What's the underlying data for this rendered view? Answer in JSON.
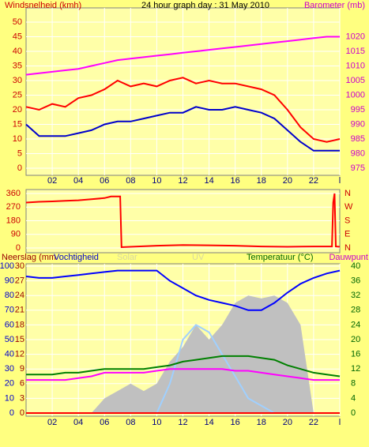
{
  "chart_data": [
    {
      "type": "line",
      "title": "24 hour graph day : 31 May 2010",
      "x": [
        0,
        1,
        2,
        3,
        4,
        5,
        6,
        7,
        8,
        9,
        10,
        11,
        12,
        13,
        14,
        15,
        16,
        17,
        18,
        19,
        20,
        21,
        22,
        23,
        24
      ],
      "series": [
        {
          "name": "Windsnelheid (kmh)",
          "color": "#ff0000",
          "axis": "y",
          "values": [
            21,
            20,
            22,
            21,
            24,
            25,
            27,
            30,
            28,
            29,
            28,
            30,
            31,
            29,
            30,
            29,
            29,
            28,
            27,
            25,
            20,
            14,
            10,
            9,
            10
          ]
        },
        {
          "color": "#0000cc",
          "axis": "y",
          "values": [
            15,
            11,
            11,
            11,
            12,
            13,
            15,
            16,
            16,
            17,
            18,
            19,
            19,
            21,
            20,
            20,
            21,
            20,
            19,
            17,
            13,
            9,
            6,
            6,
            6
          ]
        },
        {
          "name": "Barometer (mb)",
          "color": "#ff00ff",
          "axis": "y2",
          "values": [
            1007,
            1007.5,
            1008,
            1008.5,
            1009,
            1010,
            1011,
            1012,
            1012.5,
            1013,
            1013.5,
            1014,
            1014.5,
            1015,
            1015.5,
            1016,
            1016.5,
            1017,
            1017.5,
            1018,
            1018.5,
            1019,
            1019.5,
            1020,
            1020
          ]
        }
      ],
      "xlim": [
        0,
        24
      ],
      "xticks": [
        {
          "value": 2,
          "label": "02"
        },
        {
          "value": 4,
          "label": "04"
        },
        {
          "value": 6,
          "label": "06"
        },
        {
          "value": 8,
          "label": "08"
        },
        10,
        12,
        14,
        16,
        18,
        20,
        22,
        {
          "value": 24,
          "label": "l"
        }
      ],
      "ylim": [
        0,
        50
      ],
      "yticks": [
        0,
        5,
        10,
        15,
        20,
        25,
        30,
        35,
        40,
        45,
        50
      ],
      "y2lim": [
        975,
        1025
      ],
      "y2ticks": [
        975,
        980,
        985,
        990,
        995,
        1000,
        1005,
        1010,
        1015,
        1020
      ],
      "grid": true
    },
    {
      "type": "line",
      "x": [
        0,
        1,
        2,
        3,
        4,
        5,
        6,
        6.5,
        7.2,
        7.3,
        8,
        10,
        12,
        14,
        16,
        18,
        20,
        22,
        23,
        23.4,
        23.5,
        23.6,
        23.7,
        24
      ],
      "series": [
        {
          "color": "#ff0000",
          "axis": "y",
          "values": [
            300,
            305,
            308,
            312,
            315,
            322,
            330,
            340,
            340,
            5,
            8,
            15,
            20,
            18,
            15,
            10,
            8,
            10,
            10,
            10,
            300,
            360,
            10,
            8
          ]
        }
      ],
      "xlim": [
        0,
        24
      ],
      "ylim": [
        0,
        360
      ],
      "yticks": [
        0,
        90,
        180,
        270,
        360
      ],
      "y2lim": [
        0,
        360
      ],
      "y2ticks": [
        {
          "value": 0,
          "label": "N"
        },
        {
          "value": 90,
          "label": "E"
        },
        {
          "value": 180,
          "label": "S"
        },
        {
          "value": 270,
          "label": "W"
        },
        {
          "value": 360,
          "label": "N"
        }
      ],
      "grid": true
    },
    {
      "type": "line",
      "x": [
        0,
        1,
        2,
        3,
        4,
        5,
        6,
        7,
        8,
        9,
        10,
        11,
        12,
        13,
        14,
        15,
        16,
        17,
        18,
        19,
        20,
        21,
        22,
        23,
        24
      ],
      "series": [
        {
          "name": "Solar",
          "color": "#c0c0c0",
          "axis": "y",
          "style": "area",
          "values": [
            0,
            0,
            0,
            0,
            0,
            0,
            10,
            15,
            20,
            15,
            20,
            35,
            45,
            60,
            50,
            60,
            75,
            80,
            78,
            80,
            75,
            60,
            0,
            0,
            0
          ]
        },
        {
          "name": "UV",
          "color": "#a0d0ff",
          "axis": "y",
          "values": [
            0,
            0,
            0,
            0,
            0,
            0,
            0,
            0,
            0,
            0,
            0,
            20,
            50,
            60,
            55,
            40,
            25,
            10,
            5,
            0,
            0,
            0,
            0,
            0,
            0
          ]
        },
        {
          "name": "Neerslag (mm",
          "color": "#ff0000",
          "axis": "y3",
          "values": [
            0,
            0,
            0,
            0,
            0,
            0,
            0,
            0,
            0,
            0,
            0,
            0,
            0,
            0,
            0,
            0,
            0,
            0,
            0,
            0,
            0,
            0,
            0,
            0,
            0
          ]
        },
        {
          "name": "Vochtigheid",
          "color": "#0000ff",
          "axis": "y",
          "values": [
            93,
            92,
            92,
            93,
            94,
            95,
            96,
            97,
            97,
            97,
            97,
            90,
            85,
            80,
            77,
            75,
            73,
            70,
            70,
            75,
            82,
            88,
            92,
            95,
            97
          ]
        },
        {
          "name": "Temperatuur (°C)",
          "color": "#008000",
          "axis": "y2",
          "values": [
            10.5,
            10.5,
            10.5,
            11,
            11,
            11.5,
            12,
            12,
            12,
            12,
            12.5,
            13,
            14,
            14.5,
            15,
            15.5,
            15.5,
            15.5,
            15,
            14.5,
            13,
            12,
            11,
            10.5,
            10
          ]
        },
        {
          "name": "Dauwpunt",
          "color": "#ff00ff",
          "axis": "y2",
          "values": [
            9,
            9,
            9,
            9,
            9.5,
            10,
            11,
            11,
            11,
            11,
            11.5,
            12,
            12,
            12,
            12,
            12,
            11.5,
            11.5,
            11,
            10.5,
            10,
            9.5,
            9,
            9,
            9
          ]
        }
      ],
      "xlim": [
        0,
        24
      ],
      "xticks": [
        {
          "value": 2,
          "label": "02"
        },
        {
          "value": 4,
          "label": "04"
        },
        {
          "value": 6,
          "label": "06"
        },
        {
          "value": 8,
          "label": "08"
        },
        10,
        12,
        14,
        16,
        18,
        20,
        22,
        {
          "value": 24,
          "label": "l"
        }
      ],
      "ylim": [
        0,
        100
      ],
      "yticks": [
        0,
        10,
        20,
        30,
        40,
        50,
        60,
        70,
        80,
        90,
        100
      ],
      "y3lim": [
        0,
        30
      ],
      "y3ticks": [
        0,
        3,
        6,
        9,
        12,
        15,
        18,
        21,
        24,
        27,
        30
      ],
      "y2lim": [
        0,
        40
      ],
      "y2ticks": [
        0,
        4,
        8,
        12,
        16,
        20,
        24,
        28,
        32,
        36,
        40
      ],
      "grid": true
    }
  ]
}
